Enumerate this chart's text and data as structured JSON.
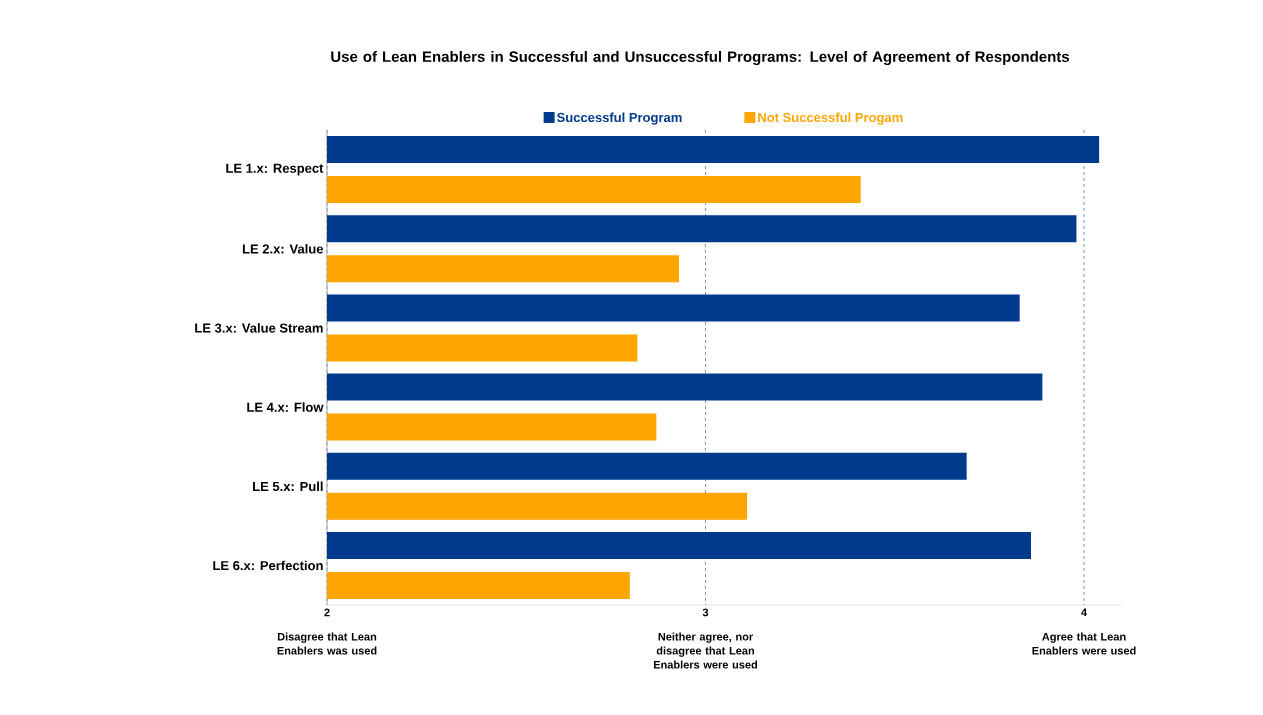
{
  "chart_data": {
    "type": "bar",
    "orientation": "horizontal",
    "title": "Use of Lean Enablers in Successful and Unsuccessful Programs: Level of Agreement of Respondents",
    "categories": [
      "LE 1.x: Respect",
      "LE 2.x: Value",
      "LE 3.x: Value Stream",
      "LE 4.x: Flow",
      "LE 5.x: Pull",
      "LE 6.x: Perfection"
    ],
    "series": [
      {
        "name": "Successful Program",
        "color": "#003a8c",
        "values": [
          4.04,
          3.98,
          3.83,
          3.89,
          3.69,
          3.86
        ]
      },
      {
        "name": "Not Successful Progam",
        "color": "#ffa500",
        "values": [
          3.41,
          2.93,
          2.82,
          2.87,
          3.11,
          2.8
        ]
      }
    ],
    "xlim": [
      2,
      4.1
    ],
    "xticks": [
      2,
      3,
      4
    ],
    "annotations": [
      "Disagree that Lean Enablers was used",
      "Neither agree, nor disagree that Lean Enablers were used",
      "Agree that Lean Enablers were used"
    ],
    "grid": "x",
    "legend": "top"
  }
}
